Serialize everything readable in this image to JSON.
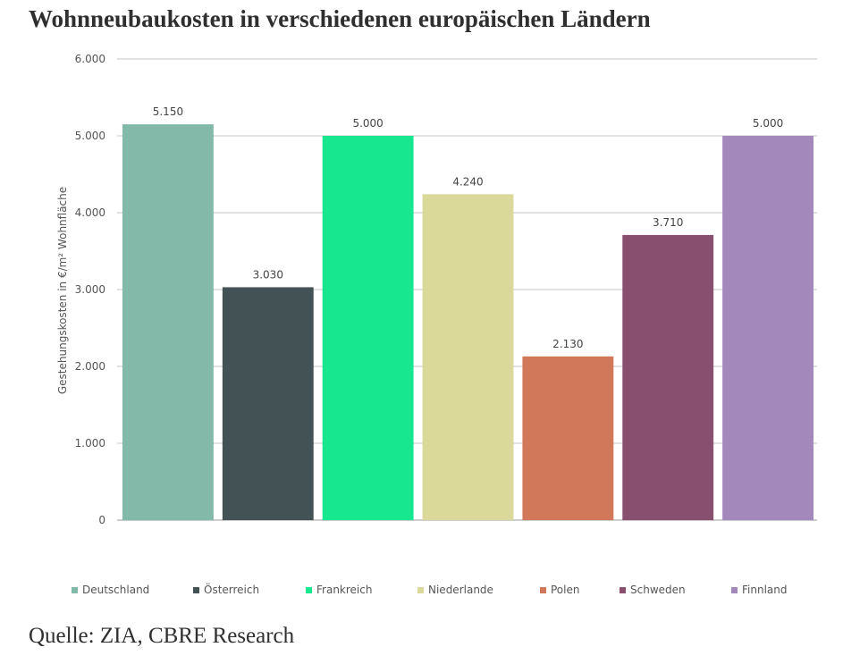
{
  "title": "Wohnneubaukosten in verschiedenen europäischen Ländern",
  "source": "Quelle: ZIA, CBRE Research",
  "chart_data": {
    "type": "bar",
    "ylabel": "Gestehungskosten in €/m² Wohnfläche",
    "ylim": [
      0,
      6000
    ],
    "yticks": [
      0,
      1000,
      2000,
      3000,
      4000,
      5000,
      6000
    ],
    "ytick_labels": [
      "0",
      "1.000",
      "2.000",
      "3.000",
      "4.000",
      "5.000",
      "6.000"
    ],
    "grid": true,
    "legend_position": "bottom",
    "categories": [
      "Deutschland",
      "Österreich",
      "Frankreich",
      "Niederlande",
      "Polen",
      "Schweden",
      "Finnland"
    ],
    "values": [
      5150,
      3030,
      5000,
      4240,
      2130,
      3710,
      5000
    ],
    "value_labels": [
      "5.150",
      "3.030",
      "5.000",
      "4.240",
      "2.130",
      "3.710",
      "5.000"
    ],
    "colors": [
      "#82b9a9",
      "#435254",
      "#17e88f",
      "#dbd99a",
      "#d2785a",
      "#884f6e",
      "#a388bc"
    ]
  }
}
